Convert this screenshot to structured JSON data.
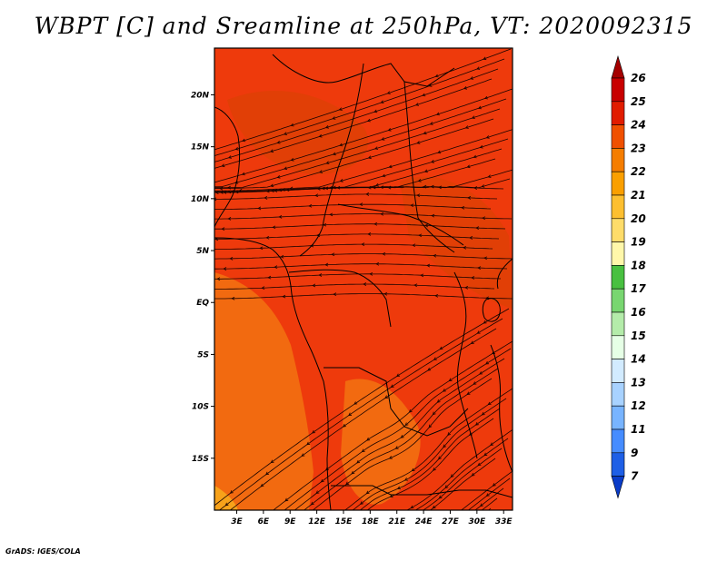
{
  "title": "WBPT [C] and Sreamline at 250hPa, VT: 2020092315",
  "footer": "GrADS: IGES/COLA",
  "map": {
    "lat_labels": [
      "20N",
      "15N",
      "10N",
      "5N",
      "EQ",
      "5S",
      "10S",
      "15S"
    ],
    "lat_values": [
      20,
      15,
      10,
      5,
      0,
      -5,
      -10,
      -15
    ],
    "lon_labels": [
      "3E",
      "6E",
      "9E",
      "12E",
      "15E",
      "18E",
      "21E",
      "24E",
      "27E",
      "30E",
      "33E"
    ],
    "lon_values": [
      3,
      6,
      9,
      12,
      15,
      18,
      21,
      24,
      27,
      30,
      33
    ],
    "lat_range": [
      -20,
      24.5
    ],
    "lon_range": [
      0.5,
      34
    ],
    "field_color": "#ee3a0c",
    "warm_color": "#e13f06",
    "cool_color": "#f26a10",
    "streamline_color": "#1a0400",
    "border_color": "#000000"
  },
  "colorbar": {
    "levels": [
      "26",
      "25",
      "24",
      "23",
      "22",
      "21",
      "20",
      "19",
      "18",
      "17",
      "16",
      "15",
      "14",
      "13",
      "12",
      "11",
      "9",
      "7"
    ],
    "colors": [
      "#a50000",
      "#c80000",
      "#e11c00",
      "#f05000",
      "#f57d00",
      "#fa9f00",
      "#fdbf30",
      "#fedc6a",
      "#fff7aa",
      "#48c040",
      "#78d670",
      "#b4ecaa",
      "#e6ffe6",
      "#d2ebff",
      "#a8d2ff",
      "#78b4ff",
      "#468cff",
      "#1e5fe6",
      "#0a3cc8"
    ]
  }
}
